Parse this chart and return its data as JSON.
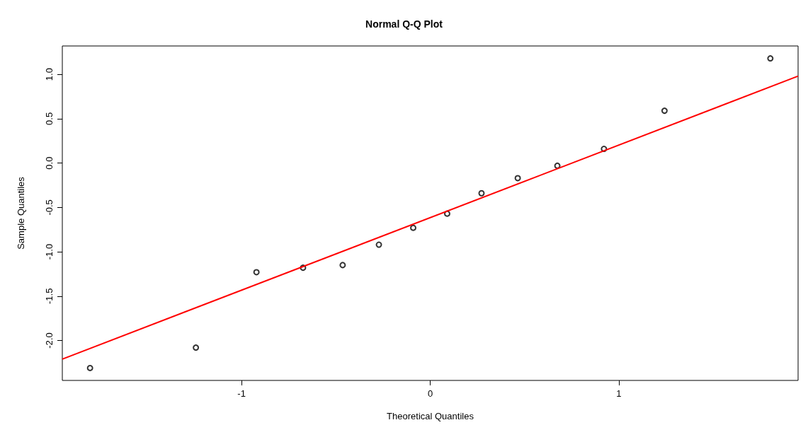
{
  "chart_data": {
    "type": "scatter",
    "title": "Normal Q-Q Plot",
    "xlabel": "Theoretical Quantiles",
    "ylabel": "Sample Quantiles",
    "series": [
      {
        "type": "scatter",
        "color": "#000000",
        "marker": "circle",
        "x": [
          -1.803,
          -1.242,
          -0.921,
          -0.674,
          -0.464,
          -0.272,
          -0.09,
          0.09,
          0.272,
          0.464,
          0.674,
          0.921,
          1.242,
          1.803
        ],
        "values": [
          -2.31,
          -2.08,
          -1.23,
          -1.18,
          -1.15,
          -0.92,
          -0.73,
          -0.57,
          -0.34,
          -0.17,
          -0.03,
          0.16,
          0.59,
          1.18
        ]
      },
      {
        "type": "line",
        "color": "#ff0000",
        "marker": "none",
        "x": [
          -1.95,
          1.95
        ],
        "values": [
          -2.21,
          0.98
        ]
      }
    ],
    "xlim": [
      -1.95,
      1.95
    ],
    "ylim": [
      -2.45,
      1.32
    ],
    "xticks": [
      -1,
      0,
      1
    ],
    "yticks": [
      {
        "value": -2,
        "label": "-2.0"
      },
      {
        "value": -1.5,
        "label": "-1.5"
      },
      {
        "value": -1,
        "label": "-1.0"
      },
      {
        "value": -0.5,
        "label": "-0.5"
      },
      {
        "value": 0,
        "label": "0.0"
      },
      {
        "value": 0.5,
        "label": "0.5"
      },
      {
        "value": 1,
        "label": "1.0"
      }
    ],
    "grid": false
  }
}
